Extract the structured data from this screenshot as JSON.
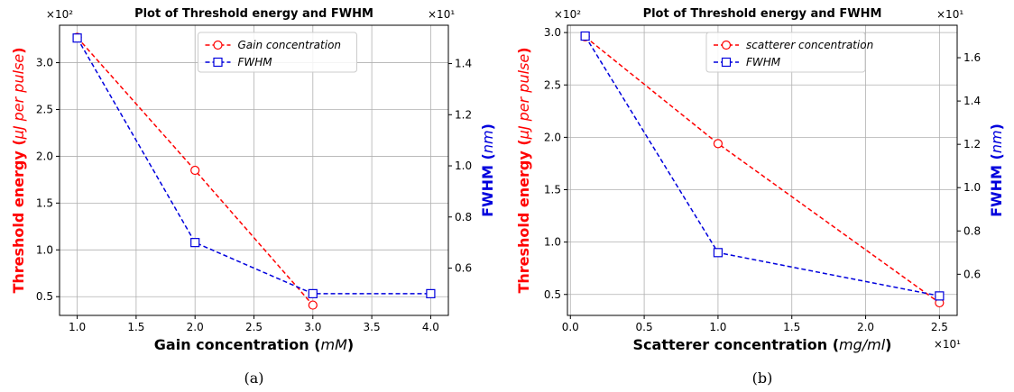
{
  "chart_data": [
    {
      "type": "line",
      "title": "Plot of Threshold energy and FWHM",
      "caption": "(a)",
      "xlabel_main": "Gain concentration",
      "xlabel_unit": "mM",
      "ylabel_left_main": "Threshold energy",
      "ylabel_left_unit": "μJ per pulse",
      "ylabel_right_main": "FWHM",
      "ylabel_right_unit": "nm",
      "x_multiplier": "",
      "y_left_multiplier": "×10²",
      "y_right_multiplier": "×10¹",
      "xlim": [
        0.85,
        4.15
      ],
      "ylim_left": [
        0.3,
        3.4
      ],
      "ylim_right": [
        0.415,
        1.55
      ],
      "x_ticks": [
        1.0,
        1.5,
        2.0,
        2.5,
        3.0,
        3.5,
        4.0
      ],
      "x_tick_labels": [
        "1.0",
        "1.5",
        "2.0",
        "2.5",
        "3.0",
        "3.5",
        "4.0"
      ],
      "y_left_ticks": [
        0.5,
        1.0,
        1.5,
        2.0,
        2.5,
        3.0
      ],
      "y_left_tick_labels": [
        "0.5",
        "1.0",
        "1.5",
        "2.0",
        "2.5",
        "3.0"
      ],
      "y_right_ticks": [
        0.6,
        0.8,
        1.0,
        1.2,
        1.4
      ],
      "y_right_tick_labels": [
        "0.6",
        "0.8",
        "1.0",
        "1.2",
        "1.4"
      ],
      "grid": true,
      "legend_position": "top-center",
      "series": [
        {
          "name": "Gain concentration",
          "axis": "left",
          "color": "#ff0000",
          "marker": "circle",
          "x": [
            1.0,
            2.0,
            3.0
          ],
          "y": [
            3.27,
            1.85,
            0.41
          ]
        },
        {
          "name": "FWHM",
          "axis": "right",
          "color": "#0000dd",
          "marker": "square",
          "x": [
            1.0,
            2.0,
            3.0,
            4.0
          ],
          "y": [
            1.5,
            0.7,
            0.5,
            0.5
          ]
        }
      ]
    },
    {
      "type": "line",
      "title": "Plot of Threshold energy and FWHM",
      "caption": "(b)",
      "xlabel_main": "Scatterer concentration",
      "xlabel_unit": "mg/ml",
      "ylabel_left_main": "Threshold energy",
      "ylabel_left_unit": "μJ per pulse",
      "ylabel_right_main": "FWHM",
      "ylabel_right_unit": "nm",
      "x_multiplier": "×10¹",
      "y_left_multiplier": "×10²",
      "y_right_multiplier": "×10¹",
      "xlim": [
        -0.02,
        2.62
      ],
      "ylim_left": [
        0.3,
        3.07
      ],
      "ylim_right": [
        0.41,
        1.75
      ],
      "x_ticks": [
        0.0,
        0.5,
        1.0,
        1.5,
        2.0,
        2.5
      ],
      "x_tick_labels": [
        "0.0",
        "0.5",
        "1.0",
        "1.5",
        "2.0",
        "2.5"
      ],
      "y_left_ticks": [
        0.5,
        1.0,
        1.5,
        2.0,
        2.5,
        3.0
      ],
      "y_left_tick_labels": [
        "0.5",
        "1.0",
        "1.5",
        "2.0",
        "2.5",
        "3.0"
      ],
      "y_right_ticks": [
        0.6,
        0.8,
        1.0,
        1.2,
        1.4,
        1.6
      ],
      "y_right_tick_labels": [
        "0.6",
        "0.8",
        "1.0",
        "1.2",
        "1.4",
        "1.6"
      ],
      "grid": true,
      "legend_position": "top-center",
      "series": [
        {
          "name": "scatterer concentration",
          "axis": "left",
          "color": "#ff0000",
          "marker": "circle",
          "x": [
            0.1,
            1.0,
            2.5
          ],
          "y": [
            2.96,
            1.94,
            0.42
          ]
        },
        {
          "name": "FWHM",
          "axis": "right",
          "color": "#0000dd",
          "marker": "square",
          "x": [
            0.1,
            1.0,
            2.5
          ],
          "y": [
            1.7,
            0.7,
            0.5
          ]
        }
      ]
    }
  ]
}
